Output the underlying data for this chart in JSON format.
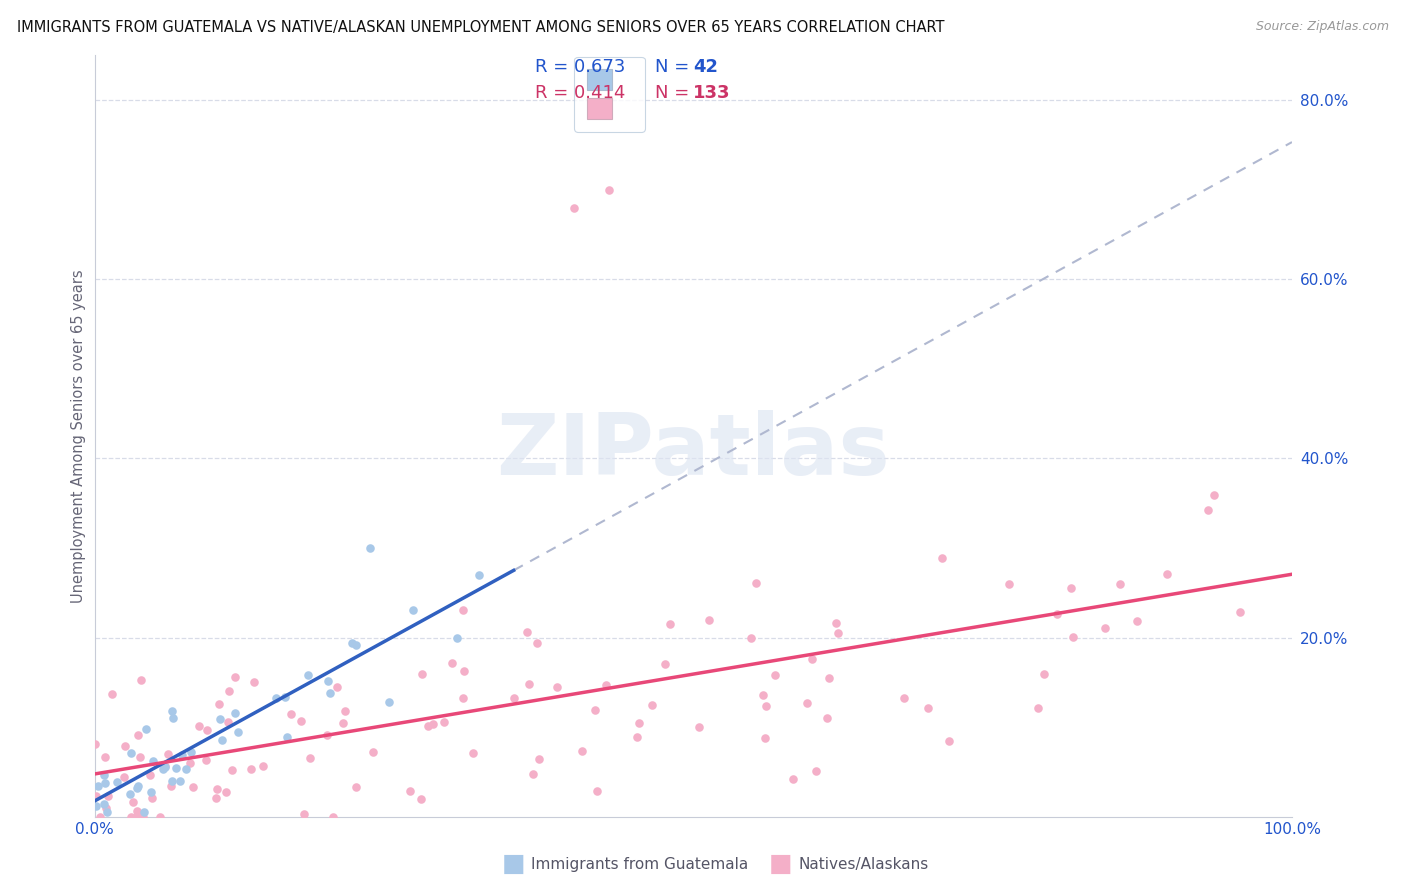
{
  "title": "IMMIGRANTS FROM GUATEMALA VS NATIVE/ALASKAN UNEMPLOYMENT AMONG SENIORS OVER 65 YEARS CORRELATION CHART",
  "source": "Source: ZipAtlas.com",
  "ylabel": "Unemployment Among Seniors over 65 years",
  "xlim": [
    0.0,
    1.0
  ],
  "ylim": [
    0.0,
    0.85
  ],
  "legend_r1": "R = 0.673",
  "legend_n1": "42",
  "legend_r2": "R = 0.414",
  "legend_n2": "133",
  "legend_label1": "Immigrants from Guatemala",
  "legend_label2": "Natives/Alaskans",
  "color_blue_scatter": "#a8c8e8",
  "color_pink_scatter": "#f4afc8",
  "color_blue_line": "#3060c0",
  "color_pink_line": "#e84878",
  "color_blue_text": "#2255cc",
  "color_pink_text": "#cc3366",
  "color_dash": "#b0b8d0",
  "bg_color": "#ffffff",
  "grid_color": "#d8dce8",
  "spine_color": "#c8ccd8"
}
